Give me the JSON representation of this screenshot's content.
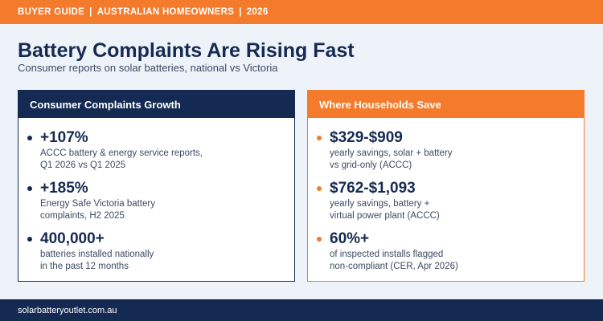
{
  "header": {
    "category": "BUYER GUIDE",
    "audience": "AUSTRALIAN HOMEOWNERS",
    "year": "2026",
    "separator": "|"
  },
  "title": "Battery Complaints Are Rising Fast",
  "subtitle": "Consumer reports on solar batteries, national vs Victoria",
  "left_card": {
    "heading": "Consumer Complaints Growth",
    "items": [
      {
        "value": "+107%",
        "description": "ACCC battery & energy service reports,\nQ1 2026 vs Q1 2025"
      },
      {
        "value": "+185%",
        "description": "Energy Safe Victoria battery\ncomplaints, H2 2025"
      },
      {
        "value": "400,000+",
        "description": "batteries installed nationally\nin the past 12 months"
      }
    ]
  },
  "right_card": {
    "heading": "Where Households Save",
    "items": [
      {
        "value": "$329-$909",
        "description": "yearly savings, solar + battery\nvs grid-only (ACCC)"
      },
      {
        "value": "$762-$1,093",
        "description": "yearly savings, battery +\nvirtual power plant (ACCC)"
      },
      {
        "value": "60%+",
        "description": "of inspected installs flagged\nnon-compliant (CER, Apr 2026)"
      }
    ]
  },
  "footer": {
    "website": "solarbatteryoutlet.com.au"
  },
  "colors": {
    "navy": "#152a52",
    "orange": "#f47a2c",
    "background": "#eef2f9"
  }
}
